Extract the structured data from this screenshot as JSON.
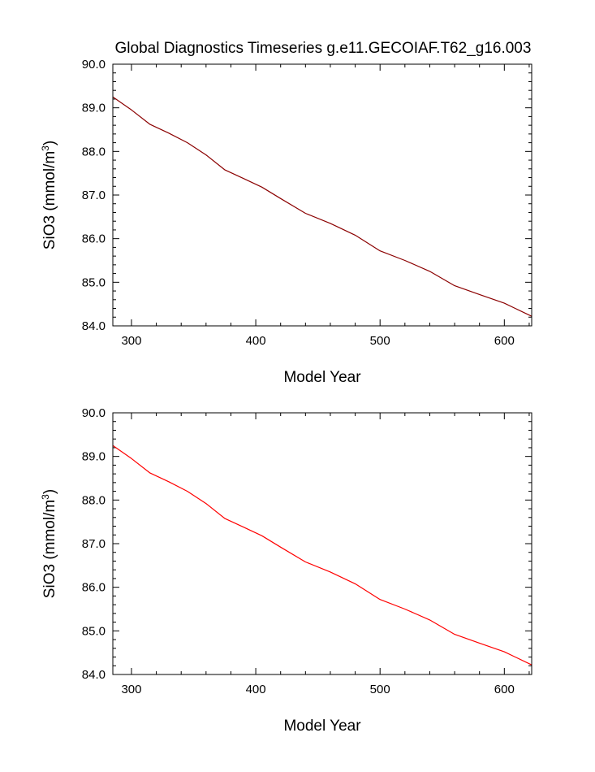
{
  "figure": {
    "title": "Global Diagnostics Timeseries g.e11.GECOIAF.T62_g16.003"
  },
  "chart_data": [
    {
      "type": "line",
      "xlabel": "Model Year",
      "ylabel_main": "SiO3 (mmol/m",
      "ylabel_sup": "3",
      "ylabel_end": ")",
      "xlim": [
        285,
        622
      ],
      "ylim": [
        84.0,
        90.0
      ],
      "xticks": [
        300,
        400,
        500,
        600
      ],
      "yticks": [
        84.0,
        85.0,
        86.0,
        87.0,
        88.0,
        89.0,
        90.0
      ],
      "ytick_labels": [
        "84.0",
        "85.0",
        "86.0",
        "87.0",
        "88.0",
        "89.0",
        "90.0"
      ],
      "series": [
        {
          "color": "#8b0000",
          "x": [
            285,
            300,
            315,
            330,
            345,
            360,
            375,
            390,
            405,
            420,
            440,
            460,
            480,
            500,
            520,
            540,
            560,
            580,
            600,
            622
          ],
          "y": [
            89.25,
            88.95,
            88.62,
            88.42,
            88.2,
            87.92,
            87.58,
            87.38,
            87.18,
            86.92,
            86.58,
            86.35,
            86.08,
            85.72,
            85.5,
            85.25,
            84.92,
            84.72,
            84.52,
            84.22
          ]
        }
      ]
    },
    {
      "type": "line",
      "xlabel": "Model Year",
      "ylabel_main": "SiO3 (mmol/m",
      "ylabel_sup": "3",
      "ylabel_end": ")",
      "xlim": [
        285,
        622
      ],
      "ylim": [
        84.0,
        90.0
      ],
      "xticks": [
        300,
        400,
        500,
        600
      ],
      "yticks": [
        84.0,
        85.0,
        86.0,
        87.0,
        88.0,
        89.0,
        90.0
      ],
      "ytick_labels": [
        "84.0",
        "85.0",
        "86.0",
        "87.0",
        "88.0",
        "89.0",
        "90.0"
      ],
      "series": [
        {
          "color": "#ff0000",
          "x": [
            285,
            300,
            315,
            330,
            345,
            360,
            375,
            390,
            405,
            420,
            440,
            460,
            480,
            500,
            520,
            540,
            560,
            580,
            600,
            622
          ],
          "y": [
            89.25,
            88.95,
            88.62,
            88.42,
            88.2,
            87.92,
            87.58,
            87.38,
            87.18,
            86.92,
            86.58,
            86.35,
            86.08,
            85.72,
            85.5,
            85.25,
            84.92,
            84.72,
            84.52,
            84.22
          ]
        }
      ]
    }
  ]
}
